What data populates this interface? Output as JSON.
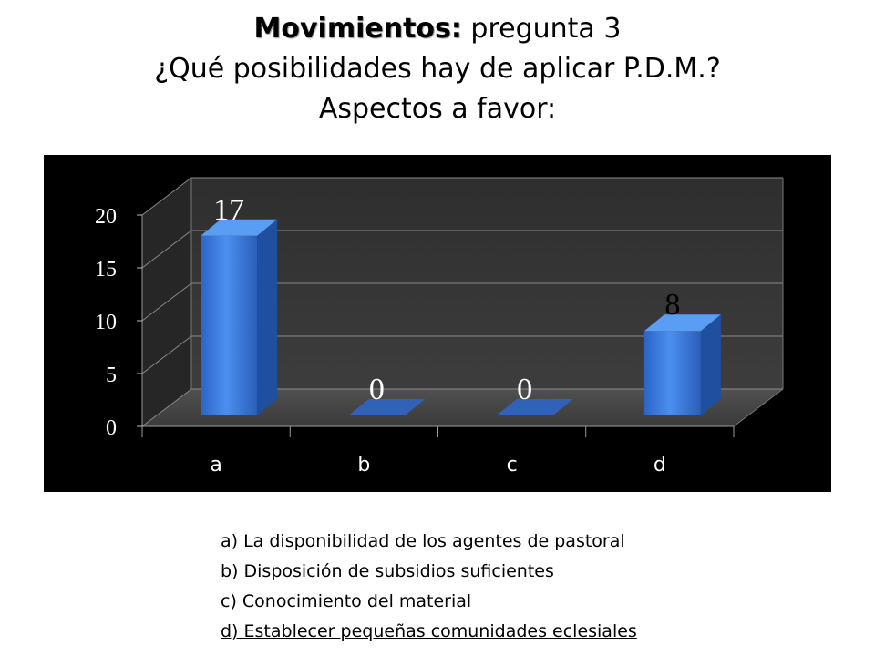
{
  "header": {
    "title_bold": "Movimientos:",
    "title_rest": " pregunta 3",
    "line2": "¿Qué posibilidades hay de aplicar P.D.M.?",
    "line3": "Aspectos a favor:"
  },
  "chart_data": {
    "type": "bar",
    "categories": [
      "a",
      "b",
      "c",
      "d"
    ],
    "values": [
      17,
      0,
      0,
      8
    ],
    "data_labels": [
      "17",
      "0",
      "0",
      "8"
    ],
    "ylim": [
      0,
      20
    ],
    "yticks": [
      "0",
      "5",
      "10",
      "15",
      "20"
    ],
    "title": "",
    "xlabel": "",
    "ylabel": "",
    "style": "3d-column",
    "bar_color": "#3a78d6",
    "background": "#000000",
    "grid": true,
    "legend": "none"
  },
  "legend_items": [
    {
      "text": "a) La disponibilidad de los agentes de pastoral",
      "underline": true
    },
    {
      "text": "b) Disposición de subsidios suficientes",
      "underline": false
    },
    {
      "text": "c) Conocimiento del material",
      "underline": false
    },
    {
      "text": "d) Establecer pequeñas comunidades eclesiales",
      "underline": true
    }
  ]
}
